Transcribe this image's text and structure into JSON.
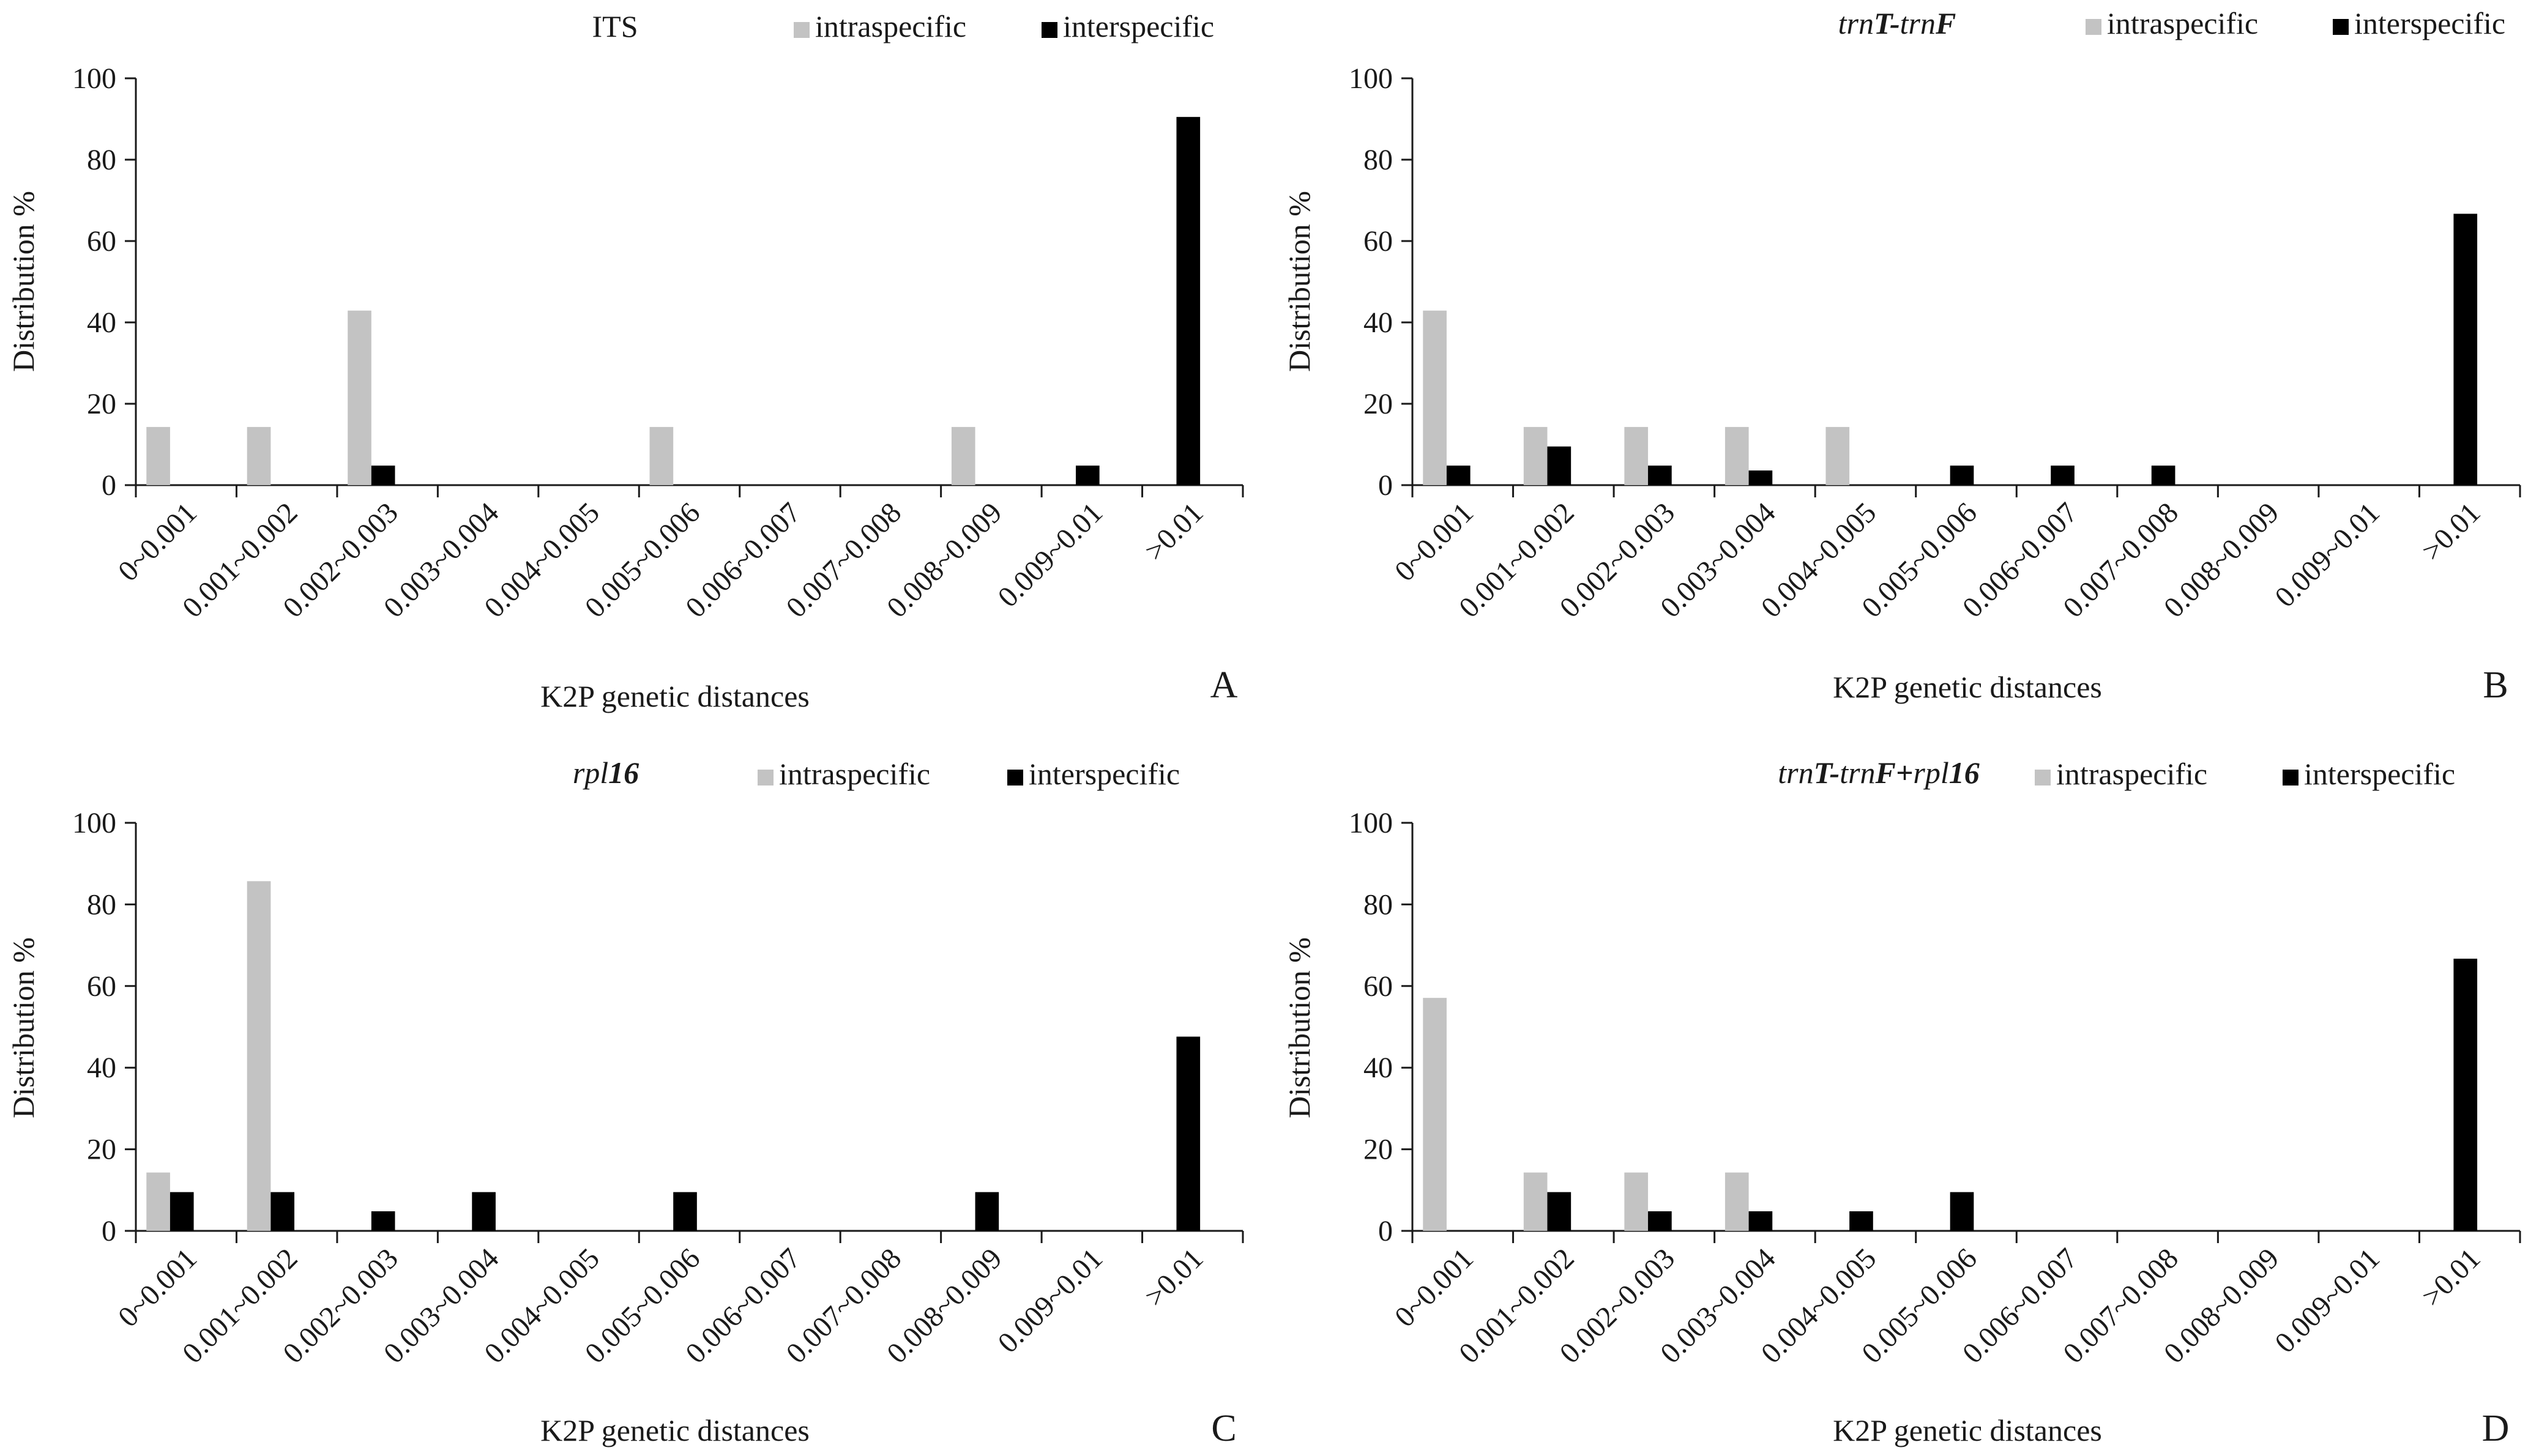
{
  "figure": {
    "categories": [
      "0~0.001",
      "0.001~0.002",
      "0.002~0.003",
      "0.003~0.004",
      "0.004~0.005",
      "0.005~0.006",
      "0.006~0.007",
      "0.007~0.008",
      "0.008~0.009",
      "0.009~0.01",
      ">0.01"
    ],
    "colors": {
      "intraspecific": "#c3c3c3",
      "interspecific": "#000000",
      "axis": "#1a1a1a"
    }
  },
  "chart_data": [
    {
      "type": "bar",
      "panel": "A",
      "title_parts": [
        {
          "text": "ITS",
          "style": "normal"
        }
      ],
      "xlabel": "K2P genetic distances",
      "ylabel": "Distribution %",
      "ylim": [
        0,
        100
      ],
      "yticks": [
        0,
        20,
        40,
        60,
        80,
        100
      ],
      "series": [
        {
          "name": "intraspecific",
          "values": [
            14.3,
            14.3,
            42.9,
            0,
            0,
            14.3,
            0,
            0,
            14.3,
            0,
            0
          ]
        },
        {
          "name": "interspecific",
          "values": [
            0,
            0,
            4.8,
            0,
            0,
            0,
            0,
            0,
            0,
            4.8,
            90.5
          ]
        }
      ]
    },
    {
      "type": "bar",
      "panel": "B",
      "title_parts": [
        {
          "text": "trn",
          "style": "italic"
        },
        {
          "text": "T",
          "style": "bolditalic"
        },
        {
          "text": "-",
          "style": "bolditalic"
        },
        {
          "text": "trn",
          "style": "italic"
        },
        {
          "text": "F",
          "style": "bolditalic"
        }
      ],
      "xlabel": "K2P genetic distances",
      "ylabel": "Distribution %",
      "ylim": [
        0,
        100
      ],
      "yticks": [
        0,
        20,
        40,
        60,
        80,
        100
      ],
      "series": [
        {
          "name": "intraspecific",
          "values": [
            42.9,
            14.3,
            14.3,
            14.3,
            14.3,
            0,
            0,
            0,
            0,
            0,
            0
          ]
        },
        {
          "name": "interspecific",
          "values": [
            4.8,
            9.5,
            4.8,
            3.6,
            0,
            4.8,
            4.8,
            4.8,
            0,
            0,
            66.7
          ]
        }
      ]
    },
    {
      "type": "bar",
      "panel": "C",
      "title_parts": [
        {
          "text": "rpl",
          "style": "italic"
        },
        {
          "text": "16",
          "style": "bolditalic"
        }
      ],
      "xlabel": "K2P genetic distances",
      "ylabel": "Distribution %",
      "ylim": [
        0,
        100
      ],
      "yticks": [
        0,
        20,
        40,
        60,
        80,
        100
      ],
      "series": [
        {
          "name": "intraspecific",
          "values": [
            14.3,
            85.7,
            0,
            0,
            0,
            0,
            0,
            0,
            0,
            0,
            0
          ]
        },
        {
          "name": "interspecific",
          "values": [
            9.5,
            9.5,
            4.8,
            9.5,
            0,
            9.5,
            0,
            0,
            9.5,
            0,
            47.6
          ]
        }
      ]
    },
    {
      "type": "bar",
      "panel": "D",
      "title_parts": [
        {
          "text": "trn",
          "style": "italic"
        },
        {
          "text": "T",
          "style": "bolditalic"
        },
        {
          "text": "-",
          "style": "bolditalic"
        },
        {
          "text": "trn",
          "style": "italic"
        },
        {
          "text": "F",
          "style": "bolditalic"
        },
        {
          "text": "+",
          "style": "bolditalic"
        },
        {
          "text": "rpl",
          "style": "italic"
        },
        {
          "text": "16",
          "style": "bolditalic"
        }
      ],
      "xlabel": "K2P genetic distances",
      "ylabel": "Distribution %",
      "ylim": [
        0,
        100
      ],
      "yticks": [
        0,
        20,
        40,
        60,
        80,
        100
      ],
      "series": [
        {
          "name": "intraspecific",
          "values": [
            57.1,
            14.3,
            14.3,
            14.3,
            0,
            0,
            0,
            0,
            0,
            0,
            0
          ]
        },
        {
          "name": "interspecific",
          "values": [
            0,
            9.5,
            4.8,
            4.8,
            4.8,
            9.5,
            0,
            0,
            0,
            0,
            66.7
          ]
        }
      ]
    }
  ]
}
